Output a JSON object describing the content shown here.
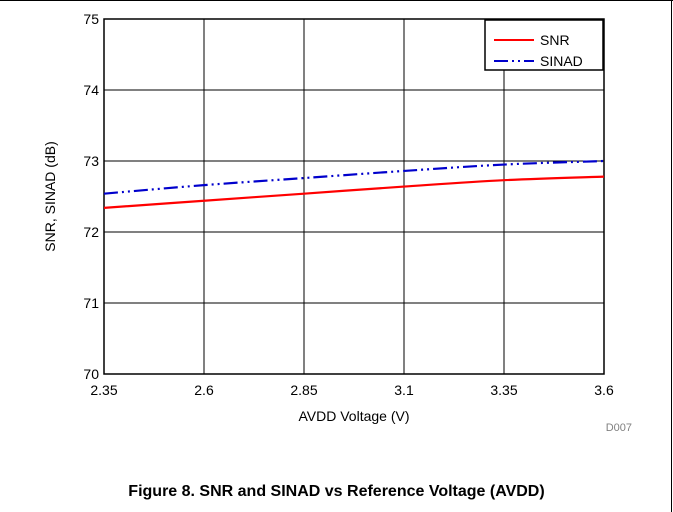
{
  "chart_data": {
    "type": "line",
    "title": "",
    "xlabel": "AVDD Voltage (V)",
    "ylabel": "SNR, SINAD (dB)",
    "x_ticks": [
      "2.35",
      "2.6",
      "2.85",
      "3.1",
      "3.35",
      "3.6"
    ],
    "y_ticks": [
      "70",
      "71",
      "72",
      "73",
      "74",
      "75"
    ],
    "xlim": [
      2.35,
      3.6
    ],
    "ylim": [
      70,
      75
    ],
    "grid": true,
    "legend_position": "top-right",
    "series": [
      {
        "name": "SNR",
        "color": "#ff0000",
        "line_style": "solid",
        "x": [
          2.35,
          2.6,
          2.85,
          3.1,
          3.35,
          3.6
        ],
        "values": [
          72.34,
          72.44,
          72.54,
          72.64,
          72.73,
          72.78
        ]
      },
      {
        "name": "SINAD",
        "color": "#0000cc",
        "line_style": "dash-dot-dot",
        "x": [
          2.35,
          2.6,
          2.85,
          3.1,
          3.35,
          3.6
        ],
        "values": [
          72.54,
          72.66,
          72.76,
          72.86,
          72.95,
          73.0
        ]
      }
    ],
    "doc_id": "D007"
  },
  "caption": "Figure 8. SNR and SINAD vs Reference Voltage (AVDD)"
}
